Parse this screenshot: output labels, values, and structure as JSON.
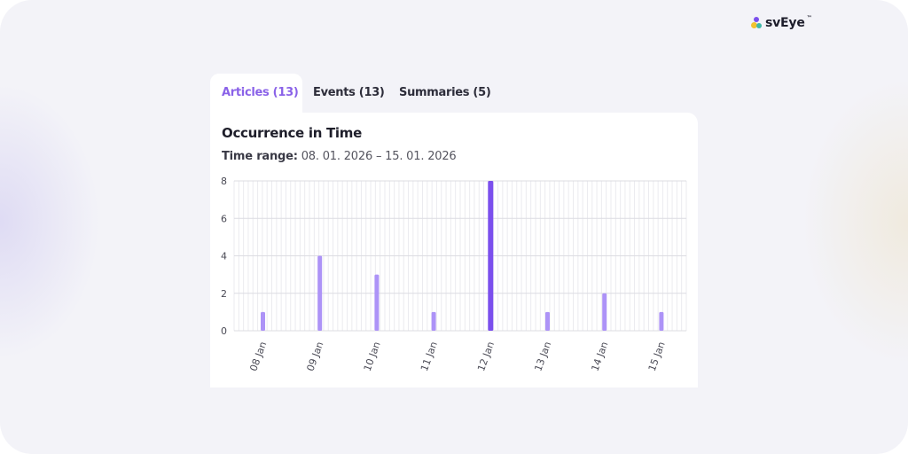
{
  "brand": {
    "name": "svEye",
    "trademark": "™"
  },
  "tabs": [
    {
      "label": "Articles (13)",
      "active": true
    },
    {
      "label": "Events (13)",
      "active": false
    },
    {
      "label": "Summaries (5)",
      "active": false
    }
  ],
  "card": {
    "title": "Occurrence in Time",
    "range_label": "Time range:",
    "range_value": "08. 01. 2026 – 15. 01. 2026"
  },
  "colors": {
    "accent": "#8a62e8",
    "bar": "#ad93f7",
    "bar_peak": "#7b4fed"
  },
  "chart_data": {
    "type": "bar",
    "categories": [
      "08 Jan",
      "09 Jan",
      "10 Jan",
      "11 Jan",
      "12 Jan",
      "13 Jan",
      "14 Jan",
      "15 Jan"
    ],
    "values": [
      1,
      4,
      3,
      1,
      8,
      1,
      2,
      1
    ],
    "title": "Occurrence in Time",
    "xlabel": "",
    "ylabel": "",
    "ylim": [
      0,
      8
    ],
    "yticks": [
      "0",
      "2",
      "4",
      "6",
      "8"
    ],
    "grid": true,
    "highlight_index": 4
  }
}
